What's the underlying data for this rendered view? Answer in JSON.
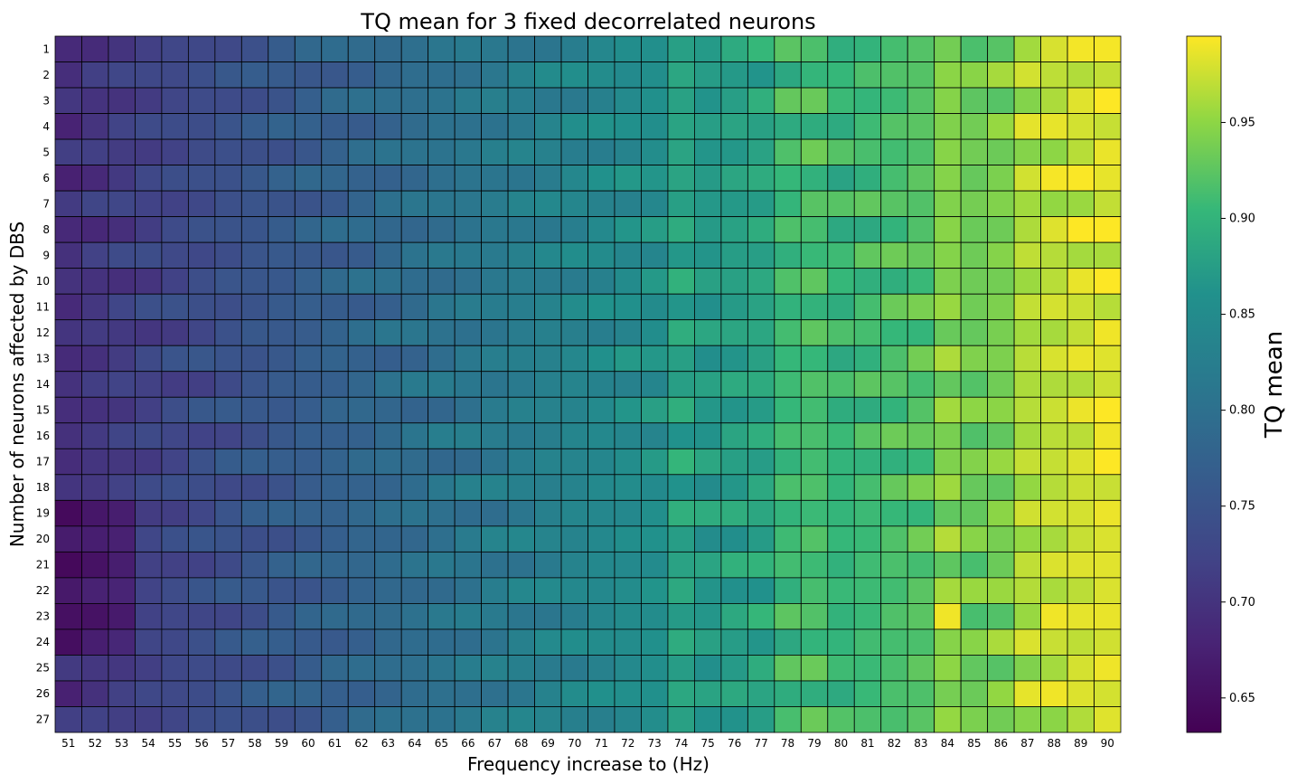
{
  "chart_data": {
    "type": "heatmap",
    "title": "TQ mean for 3 fixed decorrelated neurons",
    "xlabel": "Frequency increase to (Hz)",
    "ylabel": "Number of neurons affected by DBS",
    "x": [
      51,
      52,
      53,
      54,
      55,
      56,
      57,
      58,
      59,
      60,
      61,
      62,
      63,
      64,
      65,
      66,
      67,
      68,
      69,
      70,
      71,
      72,
      73,
      74,
      75,
      76,
      77,
      78,
      79,
      80,
      81,
      82,
      83,
      84,
      85,
      86,
      87,
      88,
      89,
      90
    ],
    "y": [
      1,
      2,
      3,
      4,
      5,
      6,
      7,
      8,
      9,
      10,
      11,
      12,
      13,
      14,
      15,
      16,
      17,
      18,
      19,
      20,
      21,
      22,
      23,
      24,
      25,
      26,
      27
    ],
    "colormap": "viridis",
    "vmin": 0.632,
    "vmax": 0.995,
    "colorbar": {
      "label": "TQ mean",
      "ticks": [
        0.65,
        0.7,
        0.75,
        0.8,
        0.85,
        0.9,
        0.95
      ],
      "tick_labels": [
        "0.65",
        "0.70",
        "0.75",
        "0.80",
        "0.85",
        "0.90",
        "0.95"
      ]
    },
    "grid": true,
    "legend": "none",
    "trend": {
      "model": "smooth increase with frequency plus small per-cell variation",
      "low_region_rows_19_to_24_columns_51_to_53": "darkest values near 0.63-0.66",
      "bright_columns": [
        74,
        78,
        79,
        84,
        87,
        88,
        89,
        90
      ],
      "max_cells": [
        [
          88,
          26
        ],
        [
          88,
          23
        ],
        [
          84,
          23
        ],
        [
          90,
          12
        ],
        [
          90,
          16
        ]
      ]
    }
  }
}
